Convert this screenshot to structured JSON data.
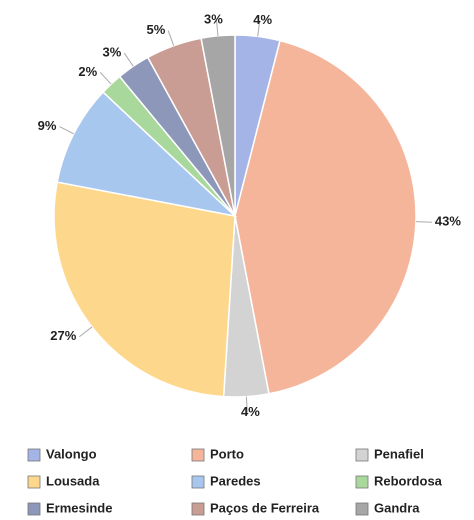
{
  "chart_data": {
    "type": "pie",
    "categories": [
      "Valongo",
      "Porto",
      "Penafiel",
      "Lousada",
      "Paredes",
      "Rebordosa",
      "Ermesinde",
      "Paços de Ferreira",
      "Gandra"
    ],
    "values": [
      4,
      43,
      4,
      27,
      9,
      2,
      3,
      5,
      3
    ],
    "value_labels": [
      "4%",
      "43%",
      "4%",
      "27%",
      "9%",
      "2%",
      "3%",
      "5%",
      "3%"
    ],
    "colors": [
      "#a4b4e6",
      "#f5b59b",
      "#d3d3d3",
      "#fdd88c",
      "#a8c7ee",
      "#a9d89c",
      "#8d97b9",
      "#c99c94",
      "#a6a6a6"
    ]
  }
}
